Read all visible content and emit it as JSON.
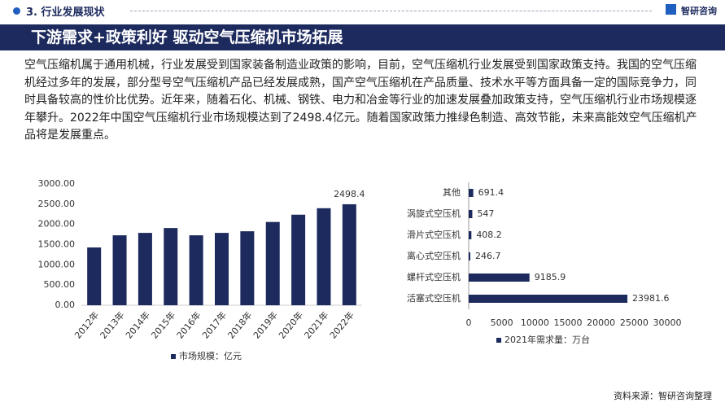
{
  "header": {
    "section": "3. 行业发展现状",
    "logo": "智研咨询"
  },
  "banner": "下游需求+政策利好 驱动空气压缩机市场拓展",
  "paragraph": "空气压缩机属于通用机械，行业发展受到国家装备制造业政策的影响，目前，空气压缩机行业发展受到国家政策支持。我国的空气压缩机经过多年的发展，部分型号空气压缩机产品已经发展成熟，国产空气压缩机在产品质量、技术水平等方面具备一定的国际竞争力，同时具备较高的性价比优势。近年来，随着石化、机械、钢铁、电力和冶金等行业的加速发展叠加政策支持，空气压缩机行业市场规模逐年攀升。2022年中国空气压缩机行业市场规模达到了2498.4亿元。随着国家政策力推绿色制造、高效节能，未来高能效空气压缩机产品将是发展重点。",
  "chart_data": [
    {
      "type": "bar",
      "orientation": "vertical",
      "categories": [
        "2012年",
        "2013年",
        "2014年",
        "2015年",
        "2016年",
        "2017年",
        "2018年",
        "2019年",
        "2020年",
        "2021年",
        "2022年"
      ],
      "series": [
        {
          "name": "市场规模：亿元",
          "color": "#1c2a5e",
          "values": [
            1430,
            1730,
            1790,
            1910,
            1730,
            1790,
            1830,
            2060,
            2240,
            2400,
            2498.4
          ],
          "value_labels": [
            null,
            null,
            null,
            null,
            null,
            null,
            null,
            null,
            null,
            null,
            "2498.4"
          ]
        }
      ],
      "ylim": [
        0,
        3000
      ],
      "yticks": [
        {
          "value": 0,
          "label": "0.00"
        },
        {
          "value": 500,
          "label": "500.00"
        },
        {
          "value": 1000,
          "label": "1000.00"
        },
        {
          "value": 1500,
          "label": "1500.00"
        },
        {
          "value": 2000,
          "label": "2000.00"
        },
        {
          "value": 2500,
          "label": "2500.00"
        },
        {
          "value": 3000,
          "label": "3000.00"
        }
      ],
      "grid": false,
      "legend": "bottom"
    },
    {
      "type": "bar",
      "orientation": "horizontal",
      "categories": [
        "其他",
        "涡旋式空压机",
        "滑片式空压机",
        "离心式空压机",
        "螺杆式空压机",
        "活塞式空压机"
      ],
      "series": [
        {
          "name": "2021年需求量：万台",
          "color": "#1c2a5e",
          "values": [
            691.4,
            547,
            408.2,
            246.7,
            9185.9,
            23981.6
          ]
        }
      ],
      "xlim": [
        0,
        30000
      ],
      "xticks": [
        0,
        5000,
        10000,
        15000,
        20000,
        25000,
        30000
      ],
      "grid": false,
      "legend": "bottom"
    }
  ],
  "source": "资料来源：智研咨询整理"
}
